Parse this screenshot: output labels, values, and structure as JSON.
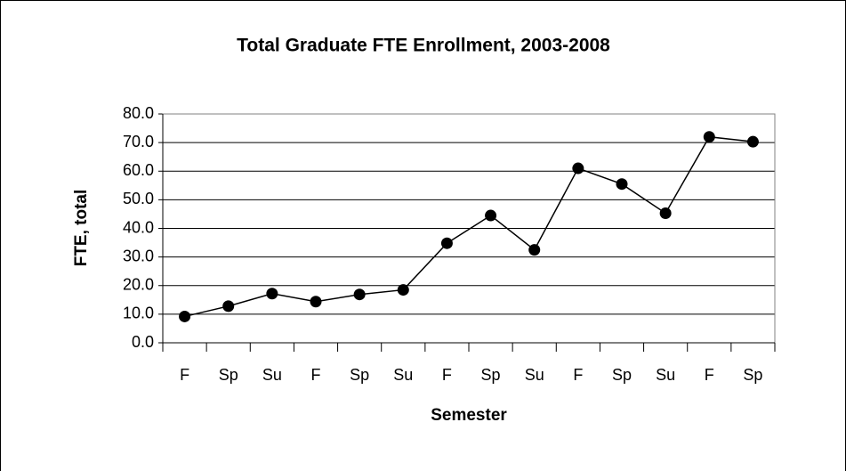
{
  "chart_data": {
    "type": "line",
    "title": "Total Graduate FTE Enrollment, 2003-2008",
    "x_label": "Semester",
    "y_label": "FTE, total",
    "categories": [
      "F",
      "Sp",
      "Su",
      "F",
      "Sp",
      "Su",
      "F",
      "Sp",
      "Su",
      "F",
      "Sp",
      "Su",
      "F",
      "Sp"
    ],
    "values": [
      9.2,
      12.8,
      17.2,
      14.4,
      16.9,
      18.5,
      34.8,
      44.5,
      32.5,
      61.0,
      55.5,
      45.3,
      72.0,
      70.3
    ],
    "color": "#000000",
    "ylim": [
      0,
      80
    ],
    "yticks": [
      {
        "value": 0,
        "label": "0.0"
      },
      {
        "value": 10,
        "label": "10.0"
      },
      {
        "value": 20,
        "label": "20.0"
      },
      {
        "value": 30,
        "label": "30.0"
      },
      {
        "value": 40,
        "label": "40.0"
      },
      {
        "value": 50,
        "label": "50.0"
      },
      {
        "value": 60,
        "label": "60.0"
      },
      {
        "value": 70,
        "label": "70.0"
      },
      {
        "value": 80,
        "label": "80.0"
      }
    ],
    "grid": true
  }
}
